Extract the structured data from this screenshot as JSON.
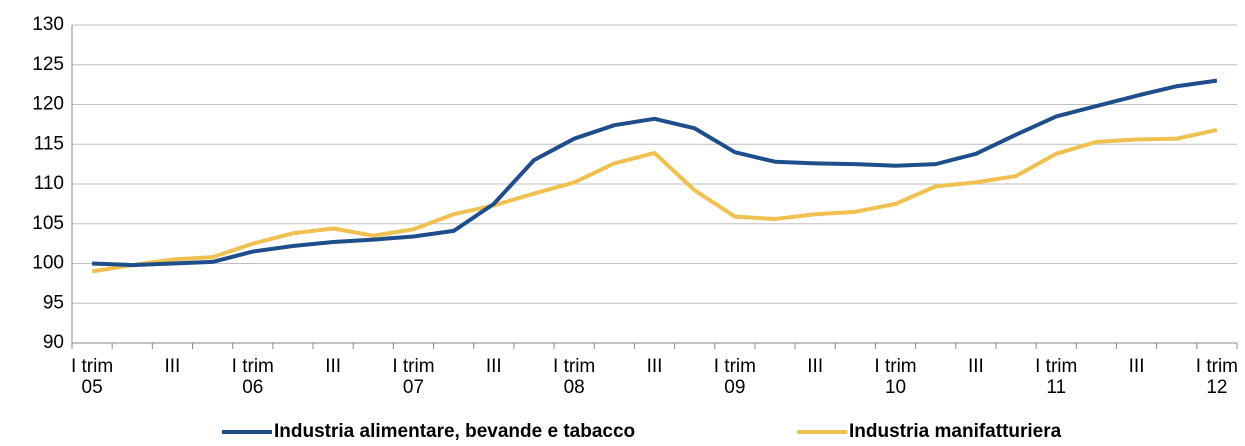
{
  "chart_data": {
    "type": "line",
    "categories": [
      "I trim\n05",
      null,
      "III",
      null,
      "I trim\n06",
      null,
      "III",
      null,
      "I trim\n07",
      null,
      "III",
      null,
      "I trim\n08",
      null,
      "III",
      null,
      "I trim\n09",
      null,
      "III",
      null,
      "I trim\n10",
      null,
      "III",
      null,
      "I trim\n11",
      null,
      "III",
      null,
      "I trim\n12"
    ],
    "series": [
      {
        "name": "Industria alimentare, bevande e tabacco",
        "color": "#1f4e8c",
        "values": [
          100,
          99.8,
          100,
          100.2,
          101.5,
          102.2,
          102.7,
          103,
          103.4,
          104.1,
          107.5,
          113,
          115.7,
          117.4,
          118.2,
          117,
          114,
          112.8,
          112.6,
          112.5,
          112.3,
          112.5,
          113.8,
          116.2,
          118.5,
          119.8,
          121.1,
          122.3,
          123
        ]
      },
      {
        "name": "Industria manifatturiera",
        "color": "#f0c050",
        "values": [
          99,
          99.8,
          100.5,
          100.8,
          102.5,
          103.8,
          104.4,
          103.5,
          104.3,
          106.2,
          107.3,
          108.8,
          110.2,
          112.6,
          113.9,
          109.2,
          105.9,
          105.6,
          106.2,
          106.5,
          107.5,
          109.7,
          110.2,
          111,
          113.8,
          115.3,
          115.6,
          115.7,
          116.8
        ]
      }
    ],
    "ylim": [
      90,
      130
    ],
    "yticks": [
      90,
      95,
      100,
      105,
      110,
      115,
      120,
      125,
      130
    ],
    "grid": true,
    "legend": "bottom"
  }
}
